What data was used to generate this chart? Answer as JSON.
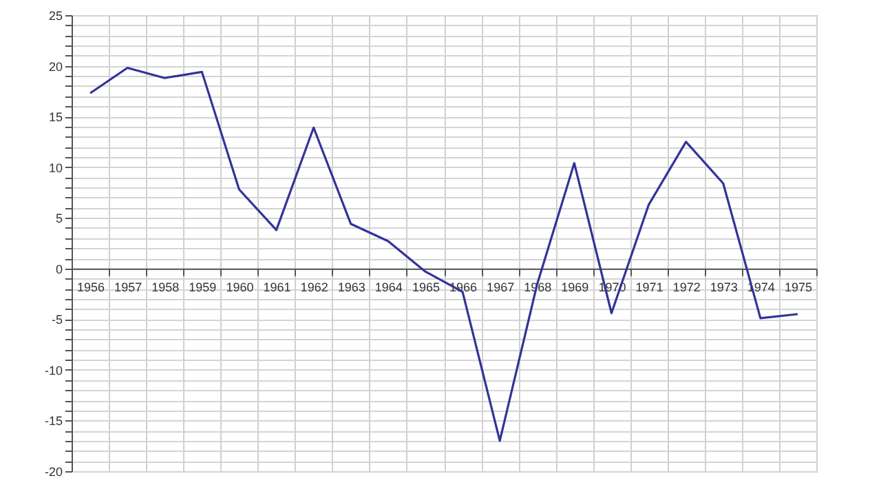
{
  "chart_data": {
    "type": "line",
    "categories": [
      "1956",
      "1957",
      "1958",
      "1959",
      "1960",
      "1961",
      "1962",
      "1963",
      "1964",
      "1965",
      "1966",
      "1967",
      "1968",
      "1969",
      "1970",
      "1971",
      "1972",
      "1973",
      "1974",
      "1975"
    ],
    "series": [
      {
        "color": "#333399",
        "values": [
          17.3,
          19.8,
          18.8,
          19.4,
          7.8,
          3.8,
          13.9,
          4.4,
          2.7,
          -0.3,
          -2.3,
          -17.0,
          -1.6,
          10.4,
          -4.4,
          6.3,
          12.5,
          8.4,
          -4.9,
          -4.5
        ]
      }
    ],
    "ylim": [
      -20,
      25
    ],
    "yticks": [
      -20,
      {
        "value": -19,
        "label": null
      },
      {
        "value": -18,
        "label": null
      },
      {
        "value": -17,
        "label": null
      },
      {
        "value": -16,
        "label": null
      },
      -15,
      {
        "value": -14,
        "label": null
      },
      {
        "value": -13,
        "label": null
      },
      {
        "value": -12,
        "label": null
      },
      {
        "value": -11,
        "label": null
      },
      -10,
      {
        "value": -9,
        "label": null
      },
      {
        "value": -8,
        "label": null
      },
      {
        "value": -7,
        "label": null
      },
      {
        "value": -6,
        "label": null
      },
      -5,
      {
        "value": -4,
        "label": null
      },
      {
        "value": -3,
        "label": null
      },
      {
        "value": -2,
        "label": null
      },
      {
        "value": -1,
        "label": null
      },
      0,
      {
        "value": 1,
        "label": null
      },
      {
        "value": 2,
        "label": null
      },
      {
        "value": 3,
        "label": null
      },
      {
        "value": 4,
        "label": null
      },
      5,
      {
        "value": 6,
        "label": null
      },
      {
        "value": 7,
        "label": null
      },
      {
        "value": 8,
        "label": null
      },
      {
        "value": 9,
        "label": null
      },
      10,
      {
        "value": 11,
        "label": null
      },
      {
        "value": 12,
        "label": null
      },
      {
        "value": 13,
        "label": null
      },
      {
        "value": 14,
        "label": null
      },
      15,
      {
        "value": 16,
        "label": null
      },
      {
        "value": 17,
        "label": null
      },
      {
        "value": 18,
        "label": null
      },
      {
        "value": 19,
        "label": null
      },
      20,
      {
        "value": 21,
        "label": null
      },
      {
        "value": 22,
        "label": null
      },
      {
        "value": 23,
        "label": null
      },
      {
        "value": 24,
        "label": null
      },
      25
    ],
    "grid": true,
    "marker": "none",
    "line_style": "solid"
  }
}
